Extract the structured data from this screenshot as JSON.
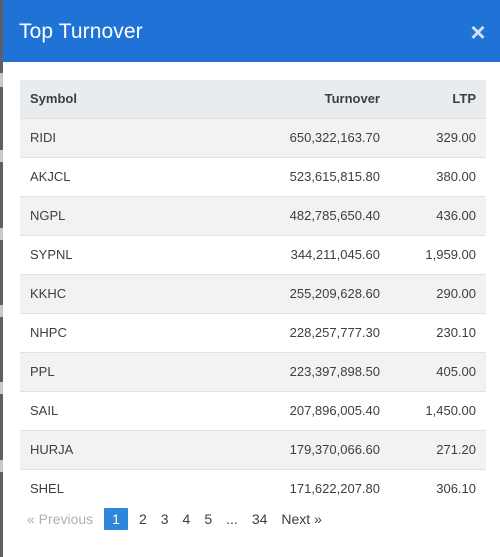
{
  "modal": {
    "title": "Top Turnover",
    "close_label": "×"
  },
  "table": {
    "columns": [
      "Symbol",
      "Turnover",
      "LTP"
    ],
    "rows": [
      {
        "symbol": "RIDI",
        "turnover": "650,322,163.70",
        "ltp": "329.00"
      },
      {
        "symbol": "AKJCL",
        "turnover": "523,615,815.80",
        "ltp": "380.00"
      },
      {
        "symbol": "NGPL",
        "turnover": "482,785,650.40",
        "ltp": "436.00"
      },
      {
        "symbol": "SYPNL",
        "turnover": "344,211,045.60",
        "ltp": "1,959.00"
      },
      {
        "symbol": "KKHC",
        "turnover": "255,209,628.60",
        "ltp": "290.00"
      },
      {
        "symbol": "NHPC",
        "turnover": "228,257,777.30",
        "ltp": "230.10"
      },
      {
        "symbol": "PPL",
        "turnover": "223,397,898.50",
        "ltp": "405.00"
      },
      {
        "symbol": "SAIL",
        "turnover": "207,896,005.40",
        "ltp": "1,450.00"
      },
      {
        "symbol": "HURJA",
        "turnover": "179,370,066.60",
        "ltp": "271.20"
      },
      {
        "symbol": "SHEL",
        "turnover": "171,622,207.80",
        "ltp": "306.10"
      }
    ]
  },
  "pagination": {
    "previous_label": "« Previous",
    "pages": [
      "1",
      "2",
      "3",
      "4",
      "5",
      "...",
      "34"
    ],
    "active_page": "1",
    "next_label": "Next »"
  },
  "colors": {
    "header_bg": "#1f73d6",
    "active_page_bg": "#2d86d9"
  }
}
